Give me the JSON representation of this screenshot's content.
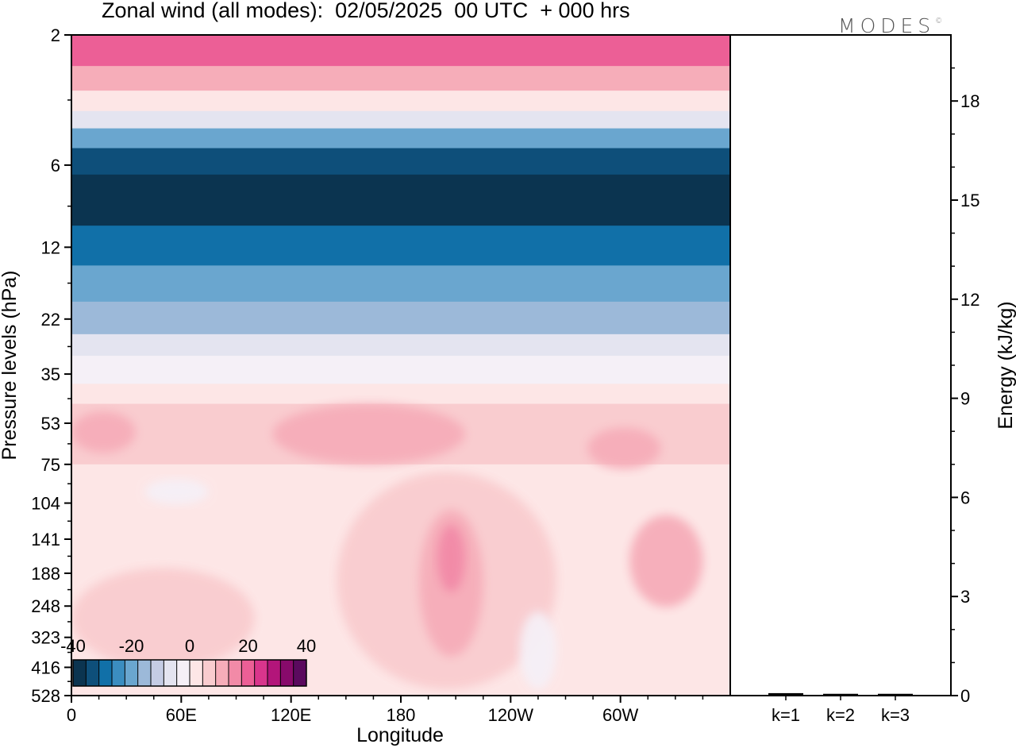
{
  "header": {
    "title": "Zonal wind (all modes):  02/05/2025  00 UTC  + 000 hrs",
    "logo": "MODES",
    "logo_mark": "©"
  },
  "chart_data": [
    {
      "type": "heatmap",
      "title": "Zonal wind (all modes):  02/05/2025  00 UTC  + 000 hrs",
      "xlabel": "Longitude",
      "ylabel": "Pressure levels (hPa)",
      "x_ticks": [
        "0",
        "60E",
        "120E",
        "180",
        "120W",
        "60W"
      ],
      "y_ticks": [
        "2",
        "6",
        "12",
        "22",
        "35",
        "53",
        "75",
        "104",
        "141",
        "188",
        "248",
        "323",
        "416",
        "528"
      ],
      "y_scale": "log-pressure, inverted",
      "colorbar": {
        "tick_labels": [
          "-40",
          "-20",
          "0",
          "20",
          "40"
        ],
        "range": [
          -40,
          40
        ],
        "colors": [
          "#0b3450",
          "#0e4f7a",
          "#1170a8",
          "#3b8dc0",
          "#6aa6cf",
          "#9cb9d9",
          "#c5cce4",
          "#e4e4f0",
          "#f5f0f7",
          "#fde6e6",
          "#f9cccf",
          "#f6adb9",
          "#f28aa7",
          "#ec5f96",
          "#d9358c",
          "#b3157a",
          "#880a6b",
          "#5a0a5e"
        ]
      },
      "bands": [
        {
          "p_top": 2,
          "p_bottom": 2.6,
          "u": 20
        },
        {
          "p_top": 2.6,
          "p_bottom": 3.2,
          "u": 10
        },
        {
          "p_top": 3.2,
          "p_bottom": 3.8,
          "u": 0
        },
        {
          "p_top": 3.8,
          "p_bottom": 4.4,
          "u": -8
        },
        {
          "p_top": 4.4,
          "p_bottom": 5.2,
          "u": -22
        },
        {
          "p_top": 5.2,
          "p_bottom": 6.5,
          "u": -32
        },
        {
          "p_top": 6.5,
          "p_bottom": 10,
          "u": -37
        },
        {
          "p_top": 10,
          "p_bottom": 14,
          "u": -28
        },
        {
          "p_top": 14,
          "p_bottom": 19,
          "u": -22
        },
        {
          "p_top": 19,
          "p_bottom": 25,
          "u": -15
        },
        {
          "p_top": 25,
          "p_bottom": 30,
          "u": -8
        },
        {
          "p_top": 30,
          "p_bottom": 38,
          "u": -2
        },
        {
          "p_top": 38,
          "p_bottom": 45,
          "u": 3
        },
        {
          "p_top": 45,
          "p_bottom": 75,
          "u": 8
        },
        {
          "p_top": 75,
          "p_bottom": 528,
          "u": 1
        }
      ],
      "features": [
        {
          "lon_min": 0,
          "lon_max": 35,
          "p_top": 48,
          "p_bottom": 68,
          "u": 13
        },
        {
          "lon_min": 282,
          "lon_max": 322,
          "p_top": 55,
          "p_bottom": 78,
          "u": 13
        },
        {
          "lon_min": 110,
          "lon_max": 215,
          "p_top": 45,
          "p_bottom": 75,
          "u": 9
        },
        {
          "lon_min": 0,
          "lon_max": 100,
          "p_top": 180,
          "p_bottom": 420,
          "u": 5
        },
        {
          "lon_min": 145,
          "lon_max": 265,
          "p_top": 80,
          "p_bottom": 500,
          "u": 6
        },
        {
          "lon_min": 190,
          "lon_max": 225,
          "p_top": 110,
          "p_bottom": 380,
          "u": 11
        },
        {
          "lon_min": 200,
          "lon_max": 215,
          "p_top": 125,
          "p_bottom": 220,
          "u": 17
        },
        {
          "lon_min": 305,
          "lon_max": 345,
          "p_top": 115,
          "p_bottom": 250,
          "u": 9
        },
        {
          "lon_min": 245,
          "lon_max": 265,
          "p_top": 260,
          "p_bottom": 500,
          "u": -3
        },
        {
          "lon_min": 40,
          "lon_max": 75,
          "p_top": 85,
          "p_bottom": 105,
          "u": -3
        }
      ]
    },
    {
      "type": "bar",
      "ylabel": "Energy (kJ/kg)",
      "categories": [
        "k=1",
        "k=2",
        "k=3"
      ],
      "values": [
        0.05,
        0.03,
        0.03
      ],
      "ylim": [
        0,
        20
      ],
      "y_ticks": [
        "0",
        "3",
        "6",
        "9",
        "12",
        "15",
        "18"
      ]
    }
  ]
}
